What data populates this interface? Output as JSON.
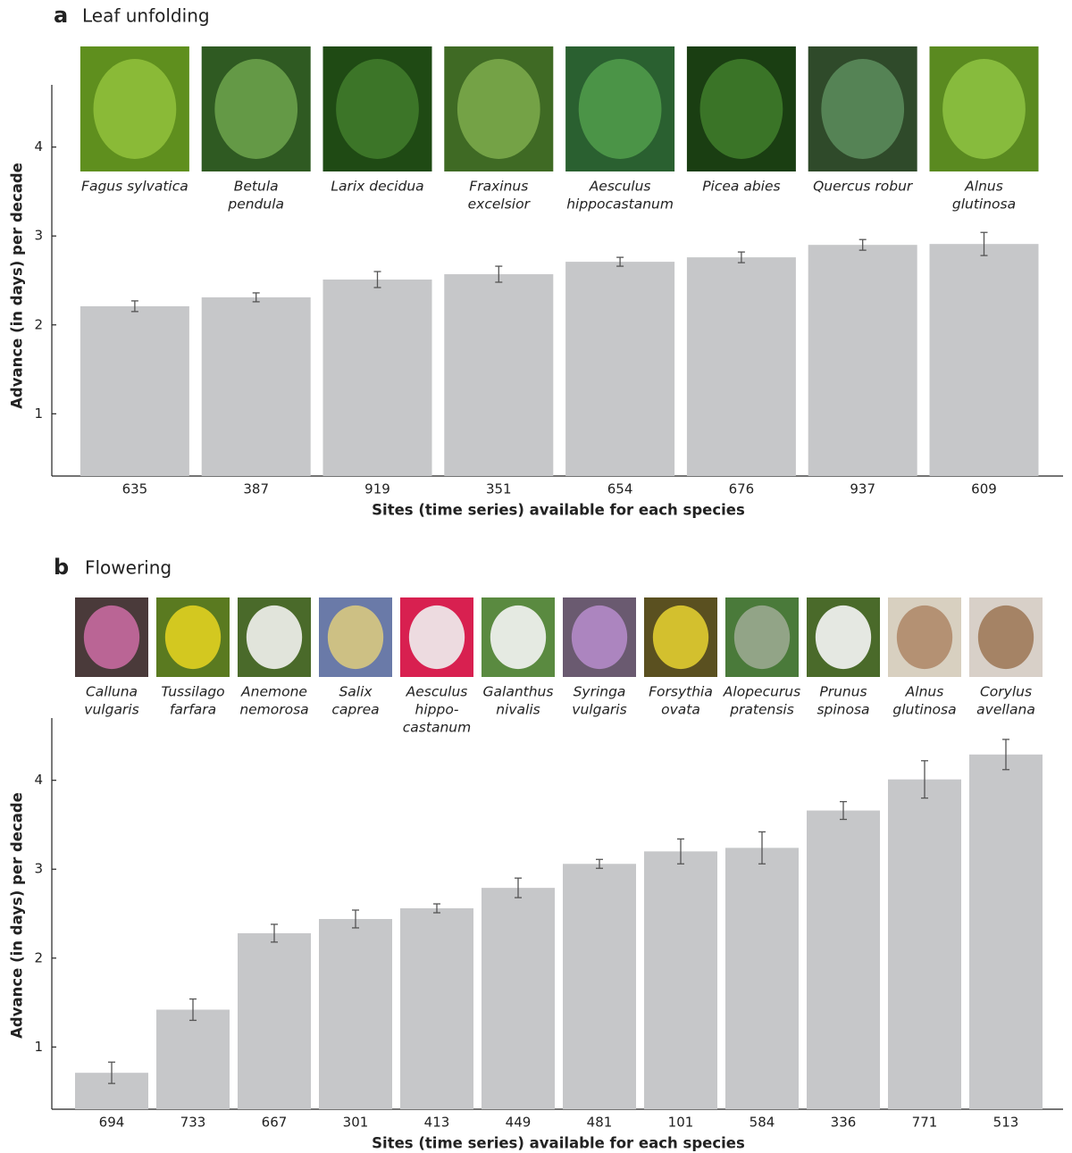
{
  "chart_data": [
    {
      "type": "bar",
      "panel": "a",
      "title": "Leaf unfolding",
      "y_label": "Advance (in days) per decade",
      "x_label": "Sites (time series) available for each species",
      "categories": [
        "635",
        "387",
        "919",
        "351",
        "654",
        "676",
        "937",
        "609"
      ],
      "species": [
        [
          "Fagus sylvatica"
        ],
        [
          "Betula",
          "pendula"
        ],
        [
          "Larix decidua"
        ],
        [
          "Fraxinus",
          "excelsior"
        ],
        [
          "Aesculus",
          "hippocastanum"
        ],
        [
          "Picea abies"
        ],
        [
          "Quercus robur"
        ],
        [
          "Alnus",
          "glutinosa"
        ]
      ],
      "values": [
        2.21,
        2.31,
        2.51,
        2.57,
        2.71,
        2.76,
        2.9,
        2.91
      ],
      "errors": [
        0.06,
        0.05,
        0.09,
        0.09,
        0.05,
        0.06,
        0.06,
        0.13
      ],
      "color": "#c6c7c9",
      "ylim": [
        0.3,
        4.7
      ],
      "yticks": [
        1,
        2,
        3,
        4
      ]
    },
    {
      "type": "bar",
      "panel": "b",
      "title": "Flowering",
      "y_label": "Advance (in days) per decade",
      "x_label": "Sites (time series) available for each species",
      "categories": [
        "694",
        "733",
        "667",
        "301",
        "413",
        "449",
        "481",
        "101",
        "584",
        "336",
        "771",
        "513"
      ],
      "species": [
        [
          "Calluna",
          "vulgaris"
        ],
        [
          "Tussilago",
          "farfara"
        ],
        [
          "Anemone",
          "nemorosa"
        ],
        [
          "Salix",
          "caprea"
        ],
        [
          "Aesculus",
          "hippo-",
          "castanum"
        ],
        [
          "Galanthus",
          "nivalis"
        ],
        [
          "Syringa",
          "vulgaris"
        ],
        [
          "Forsythia",
          "ovata"
        ],
        [
          "Alopecurus",
          "pratensis"
        ],
        [
          "Prunus",
          "spinosa"
        ],
        [
          "Alnus",
          "glutinosa"
        ],
        [
          "Corylus",
          "avellana"
        ]
      ],
      "values": [
        0.71,
        1.42,
        2.28,
        2.44,
        2.56,
        2.79,
        3.06,
        3.2,
        3.24,
        3.66,
        4.01,
        4.29
      ],
      "errors": [
        0.12,
        0.12,
        0.1,
        0.1,
        0.05,
        0.11,
        0.05,
        0.14,
        0.18,
        0.1,
        0.21,
        0.17
      ],
      "color": "#c6c7c9",
      "ylim": [
        0.3,
        4.7
      ],
      "yticks": [
        1,
        2,
        3,
        4
      ]
    }
  ]
}
